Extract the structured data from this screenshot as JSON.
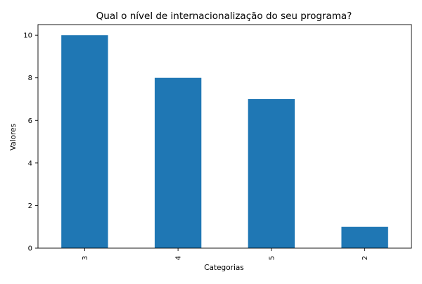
{
  "chart_data": {
    "type": "bar",
    "title": "Qual o nível de internacionalização do seu programa?",
    "xlabel": "Categorias",
    "ylabel": "Valores",
    "categories": [
      "3",
      "4",
      "5",
      "2"
    ],
    "values": [
      10,
      8,
      7,
      1
    ],
    "ylim": [
      0,
      10.5
    ],
    "yticks": [
      0,
      2,
      4,
      6,
      8,
      10
    ],
    "bar_color": "#1f77b4",
    "grid": false,
    "legend": "none"
  }
}
